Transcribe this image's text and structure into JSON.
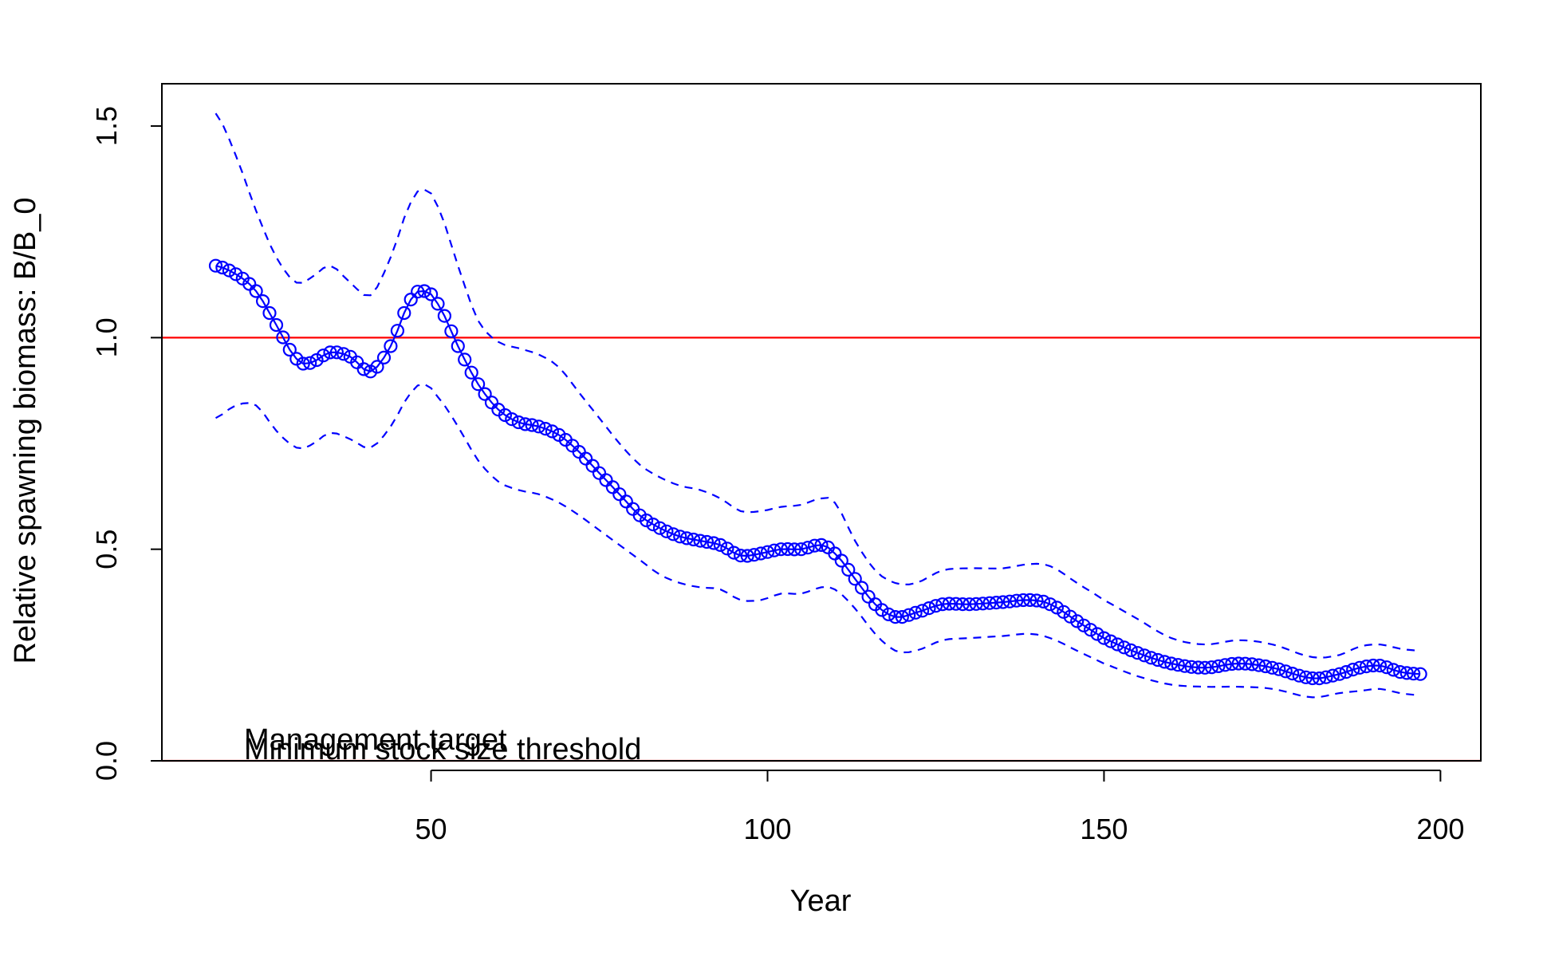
{
  "chart_data": {
    "type": "line",
    "title": "",
    "xlabel": "Year",
    "ylabel": "Relative spawning biomass: B/B_0",
    "xlim": [
      10,
      206
    ],
    "ylim": [
      0.0,
      1.6
    ],
    "x_ticks": [
      "50",
      "100",
      "150",
      "200"
    ],
    "y_ticks": [
      "0.0",
      "0.5",
      "1.0",
      "1.5"
    ],
    "grid": false,
    "legend": "none",
    "reference_lines": [
      {
        "y": 1.0,
        "color": "#ff0000",
        "label": "Management target"
      },
      {
        "y": 0.0,
        "color": "#ff0000",
        "label": "Minimum stock size threshold"
      }
    ],
    "series": [
      {
        "role": "estimate",
        "color": "#0000ff",
        "marker": "open-circle",
        "line": "solid",
        "anchors": {
          "x": [
            18,
            21,
            24,
            27,
            30,
            32,
            35,
            38,
            41,
            44,
            47,
            49,
            51,
            54,
            57,
            60,
            63,
            66,
            69,
            72,
            75,
            78,
            81,
            84,
            87,
            90,
            93,
            96,
            99,
            102,
            105,
            108,
            110,
            113,
            116,
            119,
            122,
            126,
            130,
            135,
            139,
            142,
            146,
            150,
            155,
            160,
            165,
            170,
            175,
            181,
            185,
            188,
            191,
            194,
            197
          ],
          "y": [
            1.17,
            1.15,
            1.11,
            1.03,
            0.95,
            0.94,
            0.965,
            0.955,
            0.92,
            0.98,
            1.09,
            1.11,
            1.08,
            0.98,
            0.89,
            0.83,
            0.8,
            0.79,
            0.77,
            0.73,
            0.68,
            0.63,
            0.58,
            0.55,
            0.53,
            0.52,
            0.51,
            0.485,
            0.49,
            0.5,
            0.5,
            0.51,
            0.49,
            0.43,
            0.37,
            0.34,
            0.35,
            0.37,
            0.37,
            0.375,
            0.38,
            0.37,
            0.33,
            0.29,
            0.255,
            0.23,
            0.22,
            0.23,
            0.22,
            0.195,
            0.205,
            0.22,
            0.225,
            0.21,
            0.205
          ]
        }
      },
      {
        "role": "upper-bound",
        "color": "#0000ff",
        "line": "dashed",
        "anchors": {
          "x": [
            18,
            21,
            24,
            27,
            30,
            32,
            35,
            38,
            41,
            44,
            47,
            49,
            51,
            54,
            57,
            60,
            63,
            66,
            69,
            72,
            75,
            78,
            81,
            84,
            87,
            90,
            93,
            96,
            99,
            102,
            105,
            108,
            110,
            113,
            116,
            119,
            122,
            126,
            130,
            135,
            139,
            142,
            146,
            150,
            155,
            160,
            165,
            170,
            175,
            181,
            185,
            188,
            191,
            194,
            197
          ],
          "y": [
            1.53,
            1.43,
            1.3,
            1.19,
            1.13,
            1.14,
            1.17,
            1.13,
            1.1,
            1.19,
            1.32,
            1.35,
            1.31,
            1.17,
            1.04,
            0.99,
            0.975,
            0.96,
            0.93,
            0.87,
            0.81,
            0.75,
            0.7,
            0.67,
            0.65,
            0.64,
            0.62,
            0.59,
            0.59,
            0.6,
            0.605,
            0.62,
            0.61,
            0.52,
            0.45,
            0.42,
            0.42,
            0.45,
            0.455,
            0.455,
            0.465,
            0.46,
            0.42,
            0.38,
            0.335,
            0.29,
            0.275,
            0.285,
            0.275,
            0.245,
            0.25,
            0.27,
            0.275,
            0.265,
            0.26
          ]
        }
      },
      {
        "role": "lower-bound",
        "color": "#0000ff",
        "line": "dashed",
        "anchors": {
          "x": [
            18,
            21,
            24,
            27,
            30,
            32,
            35,
            38,
            41,
            44,
            47,
            49,
            51,
            54,
            57,
            60,
            63,
            66,
            69,
            72,
            75,
            78,
            81,
            84,
            87,
            90,
            93,
            96,
            99,
            102,
            105,
            108,
            110,
            113,
            116,
            119,
            122,
            126,
            130,
            135,
            139,
            142,
            146,
            150,
            155,
            160,
            165,
            170,
            175,
            181,
            185,
            188,
            191,
            194,
            197
          ],
          "y": [
            0.81,
            0.84,
            0.84,
            0.78,
            0.74,
            0.745,
            0.775,
            0.76,
            0.74,
            0.79,
            0.87,
            0.89,
            0.86,
            0.79,
            0.71,
            0.66,
            0.64,
            0.63,
            0.61,
            0.58,
            0.545,
            0.51,
            0.475,
            0.44,
            0.42,
            0.41,
            0.405,
            0.38,
            0.38,
            0.395,
            0.395,
            0.41,
            0.405,
            0.36,
            0.3,
            0.26,
            0.26,
            0.285,
            0.29,
            0.295,
            0.3,
            0.29,
            0.26,
            0.23,
            0.2,
            0.18,
            0.175,
            0.175,
            0.17,
            0.15,
            0.16,
            0.165,
            0.17,
            0.16,
            0.155
          ]
        }
      }
    ]
  }
}
